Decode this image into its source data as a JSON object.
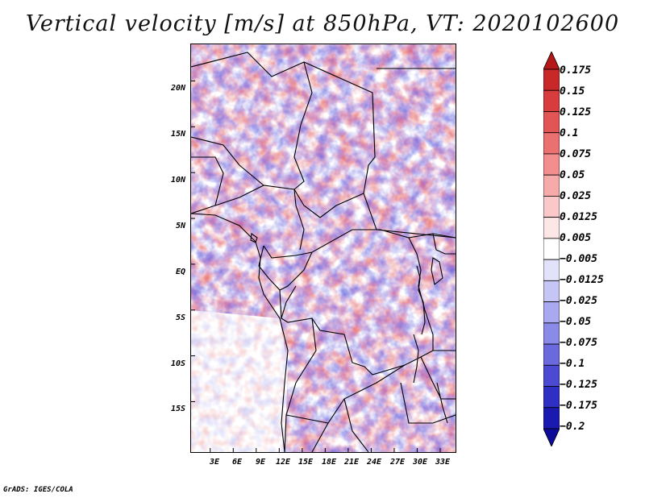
{
  "title": "Vertical velocity [m/s] at 850hPa, VT: 2020102600",
  "footer": "GrADS: IGES/COLA",
  "lat_labels": [
    "20N",
    "15N",
    "10N",
    "5N",
    "EQ",
    "5S",
    "10S",
    "15S"
  ],
  "lon_labels": [
    "3E",
    "6E",
    "9E",
    "12E",
    "15E",
    "18E",
    "21E",
    "24E",
    "27E",
    "30E",
    "33E"
  ],
  "colorbar": {
    "labels": [
      "0.175",
      "0.15",
      "0.125",
      "0.1",
      "0.075",
      "0.05",
      "0.025",
      "0.0125",
      "0.005",
      "−0.005",
      "−0.0125",
      "−0.025",
      "−0.05",
      "−0.075",
      "−0.1",
      "−0.125",
      "−0.175",
      "−0.2"
    ],
    "colors": [
      "#b41818",
      "#c92828",
      "#d93c3c",
      "#e25555",
      "#eb7070",
      "#f28e8e",
      "#f6aaaa",
      "#fac8c8",
      "#fde6e6",
      "#ffffff",
      "#e2e2fb",
      "#c6c6f6",
      "#a9a9f0",
      "#8a8ae8",
      "#6a6ade",
      "#4a4ad2",
      "#2f2fc4",
      "#1a1ab0",
      "#0c0c98"
    ]
  },
  "map": {
    "lon_range": [
      0.5,
      35
    ],
    "lat_range": [
      -20.5,
      24
    ],
    "lat_ticks": [
      20,
      15,
      10,
      5,
      0,
      -5,
      -10,
      -15
    ],
    "lon_ticks": [
      3,
      6,
      9,
      12,
      15,
      18,
      21,
      24,
      27,
      30,
      33
    ]
  }
}
